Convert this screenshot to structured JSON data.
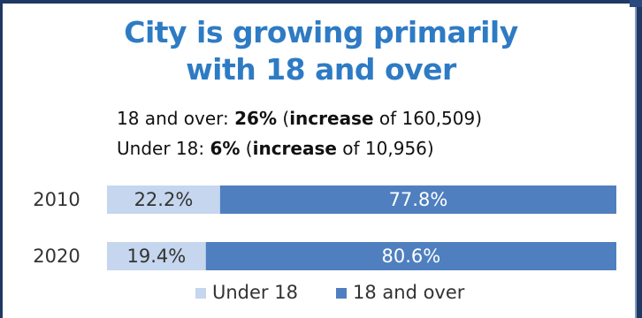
{
  "title_line1": "City is growing primarily",
  "title_line2": "with 18 and over",
  "stats": [
    {
      "label": "18 and over: ",
      "pct": "26%",
      "open": " (",
      "word": "increase",
      "rest": " of 160,509)"
    },
    {
      "label": "Under 18: ",
      "pct": "6%",
      "open": " (",
      "word": "increase",
      "rest": " of 10,956)"
    }
  ],
  "colors": {
    "title": "#2e7bc4",
    "under18": "#c5d6ee",
    "over18": "#4f7fbf",
    "frame": "#1f3864"
  },
  "chart_data": {
    "type": "bar",
    "orientation": "horizontal",
    "stacked": "percent",
    "categories": [
      "2010",
      "2020"
    ],
    "series": [
      {
        "name": "Under 18",
        "values": [
          22.2,
          19.4
        ],
        "labels": [
          "22.2%",
          "19.4%"
        ]
      },
      {
        "name": "18 and over",
        "values": [
          77.8,
          80.6
        ],
        "labels": [
          "77.8%",
          "80.6%"
        ]
      }
    ],
    "xlim": [
      0,
      100
    ],
    "legend": "bottom",
    "grid": false
  }
}
